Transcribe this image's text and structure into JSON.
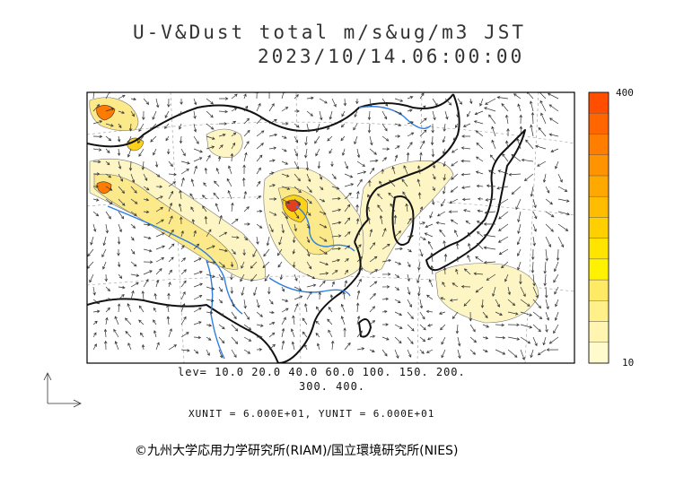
{
  "header": {
    "title": "U-V&Dust total m/s&ug/m3 JST",
    "datetime": "2023/10/14.06:00:00"
  },
  "legend": {
    "levels_line1": "lev= 10.0 20.0 40.0 60.0 100. 150. 200.",
    "levels_line2": "300. 400.",
    "units": "XUNIT = 6.000E+01, YUNIT = 6.000E+01"
  },
  "colorbar": {
    "max_label": "400",
    "min_label": "10",
    "colors": [
      "#fffbcc",
      "#fff5b0",
      "#fff08a",
      "#ffea66",
      "#fff200",
      "#ffe400",
      "#ffd000",
      "#ffbc00",
      "#ffa800",
      "#ff9400",
      "#ff7e00",
      "#ff6600",
      "#ff4e00"
    ]
  },
  "map": {
    "ocean_border": "#111111",
    "river_color": "#2f7fe0",
    "dust_colors": {
      "low": "#fdf6c4",
      "mid": "#fbe98a",
      "high": "#ffd21a",
      "peak": "#ff7a00",
      "core": "#e04020"
    }
  },
  "footer": {
    "copyright": "©九州大学応用力学研究所(RIAM)/国立環境研究所(NIES)"
  }
}
